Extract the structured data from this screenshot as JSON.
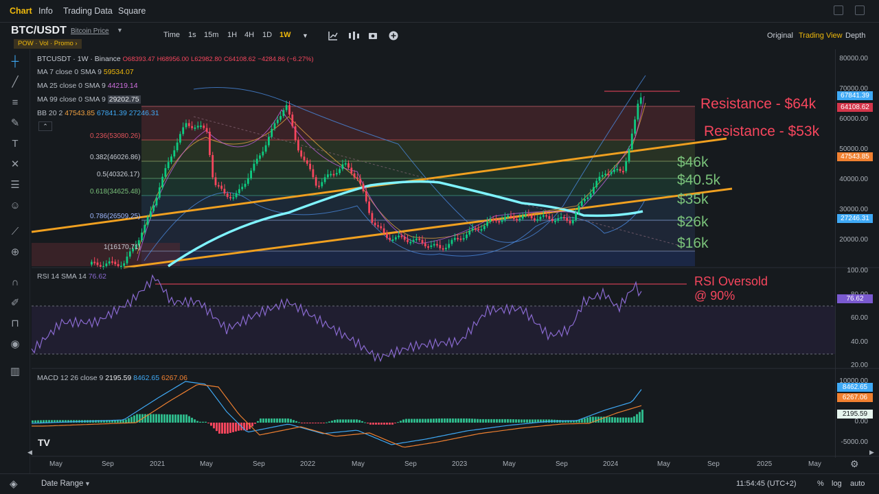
{
  "top_tabs": [
    "Chart",
    "Info",
    "Trading Data",
    "Square"
  ],
  "active_tab": "Chart",
  "symbol": {
    "name": "BTC/USDT",
    "subtitle": "Bitcoin Price",
    "tags": "POW · Vol · Promo ›"
  },
  "intervals": [
    "Time",
    "1s",
    "15m",
    "1H",
    "4H",
    "1D",
    "1W"
  ],
  "active_interval": "1W",
  "view_modes": [
    "Original",
    "Trading View",
    "Depth"
  ],
  "active_view": "Trading View",
  "legend": {
    "ohlc": "BTCUSDT · 1W · Binance",
    "o": "O68393.47",
    "h": "H68956.00",
    "l": "L62982.80",
    "c": "C64108.62",
    "change": "−4284.86 (−6.27%)",
    "ma7_label": "MA 7 close 0 SMA 9",
    "ma7_value": "59534.07",
    "ma25_label": "MA 25 close 0 SMA 9",
    "ma25_value": "44219.14",
    "ma99_label": "MA 99 close 0 SMA 9",
    "ma99_value": "29202.75",
    "bb_label": "BB 20 2",
    "bb_mid": "47543.85",
    "bb_up": "67841.39",
    "bb_low": "27246.31",
    "rsi_label": "RSI 14 SMA 14",
    "rsi_value": "76.62",
    "macd_label": "MACD 12 26 close 9",
    "macd_hist": "2195.59",
    "macd_line": "8462.65",
    "macd_signal": "6267.06"
  },
  "fib_levels": [
    {
      "label": "0.236(53080.26)",
      "color": "#e0535a"
    },
    {
      "label": "0.382(46026.86)",
      "color": "#c9ced6"
    },
    {
      "label": "0.5(40326.17)",
      "color": "#c9ced6"
    },
    {
      "label": "0.618(34625.48)",
      "color": "#7ac27a"
    },
    {
      "label": "0.786(26509.25)",
      "color": "#9fb8ff"
    },
    {
      "label": "1(16170.71)",
      "color": "#c9ced6"
    }
  ],
  "annotations": {
    "res64": "Resistance - $64k",
    "res53": "Resistance - $53k",
    "s46": "$46k",
    "s40": "$40.5k",
    "s35": "$35k",
    "s26": "$26k",
    "s16": "$16k",
    "rsi_line1": "RSI Oversold",
    "rsi_line2": "@ 90%"
  },
  "price_axis": [
    "80000.00",
    "70000.00",
    "60000.00",
    "50000.00",
    "40000.00",
    "30000.00",
    "20000.00"
  ],
  "price_badges": {
    "bb_up": "67841.39",
    "close": "64108.62",
    "bb_mid": "47543.85",
    "bb_low": "27246.31",
    "rsi": "76.62",
    "macd_line": "8462.65",
    "macd_signal": "6267.06",
    "macd_hist": "2195.59"
  },
  "rsi_axis": [
    "100.00",
    "80.00",
    "60.00",
    "40.00",
    "20.00"
  ],
  "macd_axis": [
    "10000.00",
    "5000.00",
    "0.00",
    "-5000.00"
  ],
  "time_axis": [
    "May",
    "Sep",
    "2021",
    "May",
    "Sep",
    "2022",
    "May",
    "Sep",
    "2023",
    "May",
    "Sep",
    "2024",
    "May",
    "Sep",
    "2025",
    "May"
  ],
  "bottom": {
    "date_range": "Date Range",
    "clock": "11:54:45 (UTC+2)",
    "pct": "%",
    "log": "log",
    "auto": "auto"
  },
  "colors": {
    "accent": "#f0b90b",
    "up": "#0ecb81",
    "down": "#f6465d",
    "resistance": "#f6465d",
    "support": "#7ac27a",
    "trendline": "#f0a020",
    "ma99": "#7ff3ff"
  }
}
